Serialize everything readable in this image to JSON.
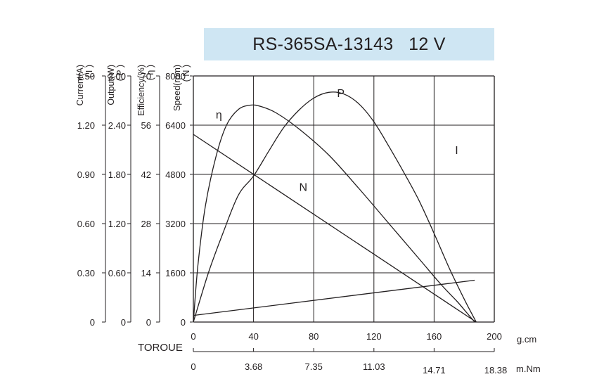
{
  "chart_data": {
    "type": "line",
    "title": "RS-365SA-13143   12 V",
    "grid": true,
    "x": {
      "label": "TOROUE",
      "unit": "g.cm",
      "range": [
        0,
        200
      ],
      "ticks": [
        "0",
        "40",
        "80",
        "120",
        "160",
        "200"
      ]
    },
    "x2": {
      "unit": "m.Nm",
      "ticks": [
        "0",
        "3.68",
        "7.35",
        "11.03",
        "14.71",
        "18.38"
      ]
    },
    "y_axes": [
      {
        "key": "current",
        "label": "Current(A)",
        "sub": "( I )",
        "range": [
          0,
          1.5
        ],
        "ticks": [
          "0",
          "0.30",
          "0.60",
          "0.90",
          "1.20",
          "1.50"
        ]
      },
      {
        "key": "output",
        "label": "Output(W)",
        "sub": "( P )",
        "range": [
          0,
          3.0
        ],
        "ticks": [
          "0",
          "0.60",
          "1.20",
          "1.80",
          "2.40",
          "3.00"
        ]
      },
      {
        "key": "efficiency",
        "label": "Efficiency(%)",
        "sub": "( η )",
        "range": [
          0,
          70
        ],
        "ticks": [
          "0",
          "14",
          "28",
          "42",
          "56",
          "70"
        ]
      },
      {
        "key": "speed",
        "label": "Speed(rpm)",
        "sub": "( N )",
        "range": [
          0,
          8000
        ],
        "ticks": [
          "0",
          "1600",
          "3200",
          "4800",
          "6400",
          "8000"
        ]
      }
    ],
    "series": [
      {
        "name": "N",
        "axis": "speed",
        "points": [
          [
            0,
            6100
          ],
          [
            188,
            0
          ]
        ]
      },
      {
        "name": "I",
        "axis": "current",
        "points": [
          [
            0,
            0.04
          ],
          [
            187,
            0.255
          ]
        ]
      },
      {
        "name": "P",
        "axis": "output",
        "points": [
          [
            0,
            0
          ],
          [
            10,
            0.6
          ],
          [
            20,
            1.1
          ],
          [
            30,
            1.55
          ],
          [
            40,
            1.78
          ],
          [
            50,
            2.08
          ],
          [
            60,
            2.37
          ],
          [
            70,
            2.58
          ],
          [
            80,
            2.73
          ],
          [
            90,
            2.8
          ],
          [
            100,
            2.78
          ],
          [
            110,
            2.66
          ],
          [
            120,
            2.44
          ],
          [
            130,
            2.14
          ],
          [
            140,
            1.82
          ],
          [
            150,
            1.48
          ],
          [
            160,
            1.08
          ],
          [
            170,
            0.66
          ],
          [
            180,
            0.28
          ],
          [
            188,
            0
          ]
        ]
      },
      {
        "name": "η",
        "axis": "efficiency",
        "points": [
          [
            0,
            0
          ],
          [
            3,
            16
          ],
          [
            8,
            33
          ],
          [
            15,
            47
          ],
          [
            22,
            56
          ],
          [
            30,
            60.5
          ],
          [
            38,
            61.7
          ],
          [
            45,
            61.3
          ],
          [
            55,
            59.5
          ],
          [
            70,
            55
          ],
          [
            90,
            47.5
          ],
          [
            110,
            38
          ],
          [
            130,
            28
          ],
          [
            150,
            18
          ],
          [
            165,
            10.5
          ],
          [
            175,
            6
          ],
          [
            182,
            2.5
          ],
          [
            187,
            0
          ]
        ]
      }
    ],
    "labels": [
      {
        "text": "η",
        "x": 17,
        "speed": 6750
      },
      {
        "text": "P",
        "x": 98,
        "speed": 7450
      },
      {
        "text": "N",
        "x": 73,
        "speed": 4400
      },
      {
        "text": "I",
        "x": 175,
        "speed": 5600
      }
    ]
  },
  "colors": {
    "title_bg": "#cfe6f3",
    "ink": "#231f20",
    "grid": "#231f20"
  }
}
